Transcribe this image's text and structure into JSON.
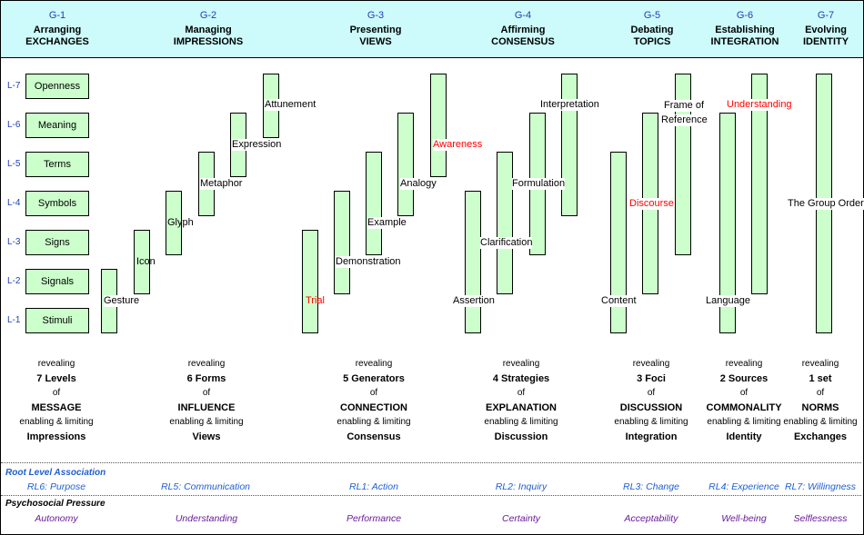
{
  "groups": [
    {
      "id": "G-1",
      "title1": "Arranging",
      "title2": "EXCHANGES"
    },
    {
      "id": "G-2",
      "title1": "Managing",
      "title2": "IMPRESSIONS"
    },
    {
      "id": "G-3",
      "title1": "Presenting",
      "title2": "VIEWS"
    },
    {
      "id": "G-4",
      "title1": "Affirming",
      "title2": "CONSENSUS"
    },
    {
      "id": "G-5",
      "title1": "Debating",
      "title2": "TOPICS"
    },
    {
      "id": "G-6",
      "title1": "Establishing",
      "title2": "INTEGRATION"
    },
    {
      "id": "G-7",
      "title1": "Evolving",
      "title2": "IDENTITY"
    }
  ],
  "levels": [
    "L-7",
    "L-6",
    "L-5",
    "L-4",
    "L-3",
    "L-2",
    "L-1"
  ],
  "g1_boxes": [
    "Openness",
    "Meaning",
    "Terms",
    "Symbols",
    "Signs",
    "Signals",
    "Stimuli"
  ],
  "g2_labels": [
    "Gesture",
    "Icon",
    "Glyph",
    "Metaphor",
    "Expression",
    "Attunement"
  ],
  "g3_labels": [
    "Trial",
    "Demonstration",
    "Example",
    "Analogy",
    "Awareness"
  ],
  "g4_labels": [
    "Assertion",
    "Clarification",
    "Formulation",
    "Interpretation"
  ],
  "g5_labels": [
    "Content",
    "Discourse",
    "Frame of",
    "Reference"
  ],
  "g6_labels": [
    "Language",
    "Understanding"
  ],
  "g7_labels": [
    "The Group Order"
  ],
  "summaries": [
    {
      "revealing": "revealing",
      "count": "7 Levels",
      "of": "of",
      "noun": "MESSAGE",
      "enabling": "enabling & limiting",
      "target": "Impressions"
    },
    {
      "revealing": "revealing",
      "count": "6 Forms",
      "of": "of",
      "noun": "INFLUENCE",
      "enabling": "enabling & limiting",
      "target": "Views"
    },
    {
      "revealing": "revealing",
      "count": "5 Generators",
      "of": "of",
      "noun": "CONNECTION",
      "enabling": "enabling & limiting",
      "target": "Consensus"
    },
    {
      "revealing": "revealing",
      "count": "4 Strategies",
      "of": "of",
      "noun": "EXPLANATION",
      "enabling": "enabling & limiting",
      "target": "Discussion"
    },
    {
      "revealing": "revealing",
      "count": "3 Foci",
      "of": "of",
      "noun": "DISCUSSION",
      "enabling": "enabling & limiting",
      "target": "Integration"
    },
    {
      "revealing": "revealing",
      "count": "2 Sources",
      "of": "of",
      "noun": "COMMONALITY",
      "enabling": "enabling & limiting",
      "target": "Identity"
    },
    {
      "revealing": "revealing",
      "count": "1 set",
      "of": "of",
      "noun": "NORMS",
      "enabling": "enabling & limiting",
      "target": "Exchanges"
    }
  ],
  "root_level": {
    "heading": "Root Level Association",
    "items": [
      "RL6: Purpose",
      "RL5: Communication",
      "RL1: Action",
      "RL2: Inquiry",
      "RL3: Change",
      "RL4: Experience",
      "RL7: Willingness"
    ]
  },
  "pressure": {
    "heading": "Psychosocial Pressure",
    "items": [
      "Autonomy",
      "Understanding",
      "Performance",
      "Certainty",
      "Acceptability",
      "Well-being",
      "Selflessness"
    ]
  },
  "colors": {
    "header_bg": "#cdfbfb",
    "box_fill": "#ccffcc",
    "group_id": "#1f3fb8",
    "highlight": "#ff0000",
    "root_level": "#1f5fd0",
    "pressure": "#6a1b9a"
  }
}
